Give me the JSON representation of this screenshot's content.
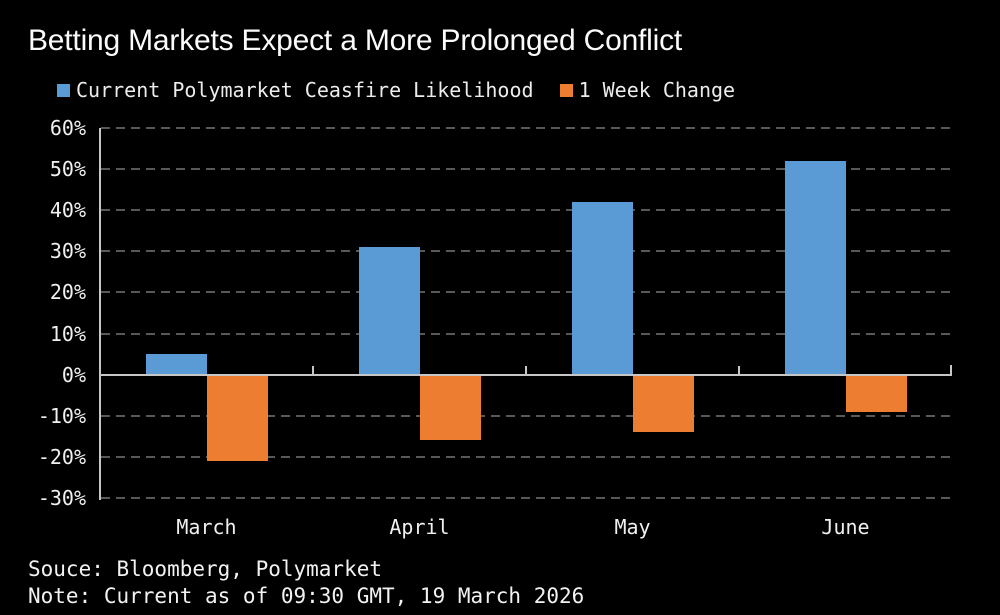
{
  "title": "Betting Markets Expect a More Prolonged Conflict",
  "legend": [
    {
      "label": "Current Polymarket Ceasfire Likelihood",
      "color": "#5B9BD5"
    },
    {
      "label": "1 Week Change",
      "color": "#ED7D31"
    }
  ],
  "footer": {
    "source": "Souce: Bloomberg, Polymarket",
    "note": "Note: Current as of 09:30 GMT, 19 March 2026"
  },
  "chart_data": {
    "type": "bar",
    "title": "Betting Markets Expect a More Prolonged Conflict",
    "categories": [
      "March",
      "April",
      "May",
      "June"
    ],
    "series": [
      {
        "name": "Current Polymarket Ceasfire Likelihood",
        "color": "#5B9BD5",
        "values": [
          5,
          31,
          42,
          52
        ]
      },
      {
        "name": "1 Week Change",
        "color": "#ED7D31",
        "values": [
          -21,
          -16,
          -14,
          -9
        ]
      }
    ],
    "ylim": [
      -30,
      60
    ],
    "ytick_step": 10,
    "ytick_suffix": "%",
    "grid": "horizontal-dashed",
    "legend_position": "top",
    "colors": {
      "background": "#000000",
      "axis": "#C6C6C6",
      "gridline": "#585858",
      "text": "#F0F0F0"
    }
  }
}
